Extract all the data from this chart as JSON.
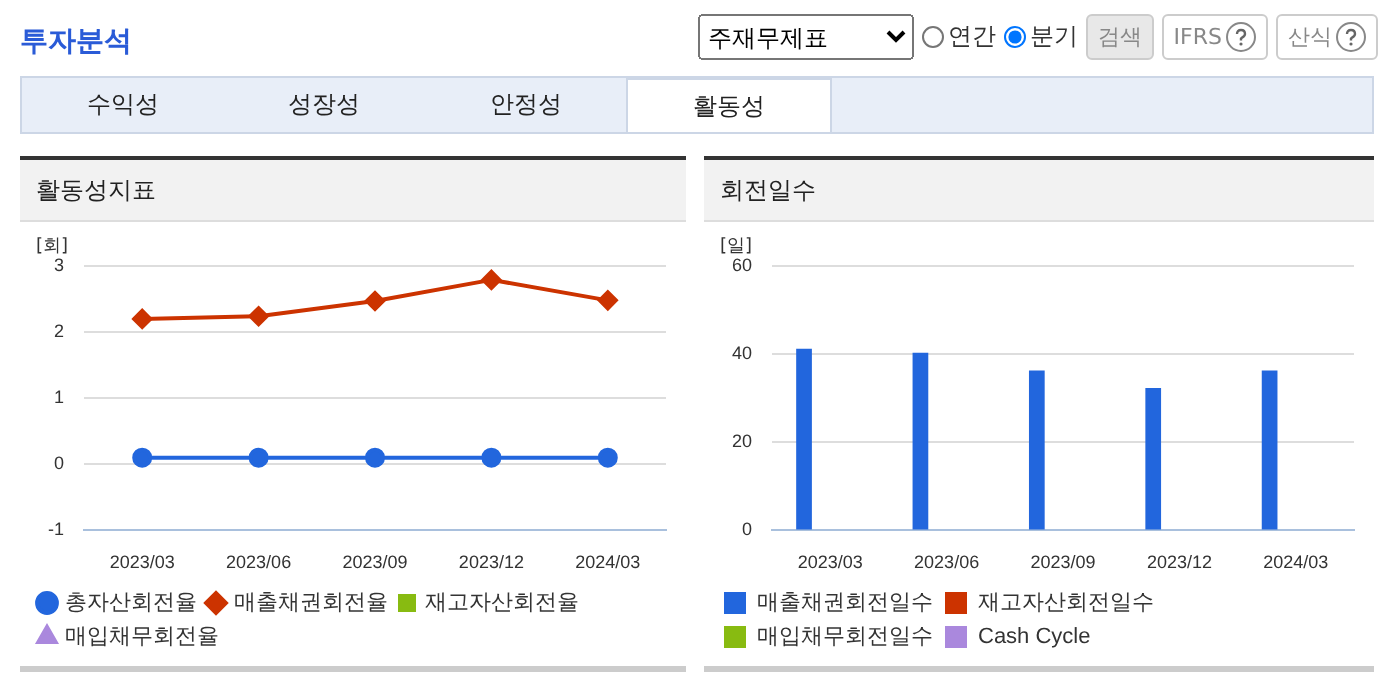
{
  "chart_data": [
    {
      "type": "other",
      "title": "투자분석",
      "annotations": [
        "주재무제표",
        "연간",
        "분기",
        "검색",
        "IFRS",
        "산식",
        "수익성",
        "성장성",
        "안정성",
        "활동성"
      ]
    },
    {
      "type": "line",
      "title": "활동성지표",
      "ylabel": "[회]",
      "categories": [
        "2023/03",
        "2023/06",
        "2023/09",
        "2023/12",
        "2024/03"
      ],
      "ylim": [
        -1,
        3
      ],
      "yticks": [
        -1,
        0,
        1,
        2,
        3
      ],
      "grid": "y",
      "legend": "bottom",
      "series": [
        {
          "name": "총자산회전율",
          "color": "#2266dd",
          "marker": "circle",
          "values": [
            0.1,
            0.1,
            0.1,
            0.1,
            0.1
          ]
        },
        {
          "name": "매출채권회전율",
          "color": "#cc3300",
          "marker": "diamond",
          "values": [
            2.2,
            2.24,
            2.47,
            2.79,
            2.48
          ]
        },
        {
          "name": "재고자산회전율",
          "color": "#88bb11",
          "marker": "square",
          "values": [
            null,
            null,
            null,
            null,
            null
          ]
        },
        {
          "name": "매입채무회전율",
          "color": "#aa88dd",
          "marker": "triangle",
          "values": [
            null,
            null,
            null,
            null,
            null
          ]
        }
      ]
    },
    {
      "type": "bar",
      "title": "회전일수",
      "ylabel": "[일]",
      "categories": [
        "2023/03",
        "2023/06",
        "2023/09",
        "2023/12",
        "2024/03"
      ],
      "ylim": [
        0,
        60
      ],
      "yticks": [
        0,
        20,
        40,
        60
      ],
      "grid": "y",
      "legend": "bottom",
      "series": [
        {
          "name": "매출채권회전일수",
          "color": "#2266dd",
          "values": [
            41.2,
            40.3,
            36.3,
            32.3,
            36.3
          ]
        },
        {
          "name": "재고자산회전일수",
          "color": "#cc3300",
          "values": [
            null,
            null,
            null,
            null,
            null
          ]
        },
        {
          "name": "매입채무회전일수",
          "color": "#88bb11",
          "values": [
            null,
            null,
            null,
            null,
            null
          ]
        },
        {
          "name": "Cash Cycle",
          "color": "#aa88dd",
          "values": [
            null,
            null,
            null,
            null,
            null
          ]
        }
      ]
    }
  ]
}
